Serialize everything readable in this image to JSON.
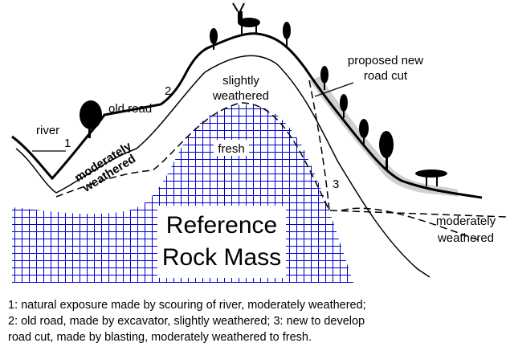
{
  "labels": {
    "river": "river",
    "n1": "1",
    "old_road": "old road",
    "n2": "2",
    "slightly": [
      "slightly",
      "weathered"
    ],
    "proposed": [
      "proposed new",
      "road cut"
    ],
    "fresh": "fresh",
    "n3": "3",
    "moderately_left": [
      "moderately",
      "weathered"
    ],
    "moderately_right": [
      "moderately",
      "weathered"
    ],
    "reference": [
      "Reference",
      "Rock Mass"
    ]
  },
  "caption": [
    "1: natural exposure made by scouring of river, moderately weathered;",
    "2: old road, made by excavator, slightly weathered; 3: new to develop",
    "road cut, made by blasting, moderately weathered to fresh."
  ]
}
